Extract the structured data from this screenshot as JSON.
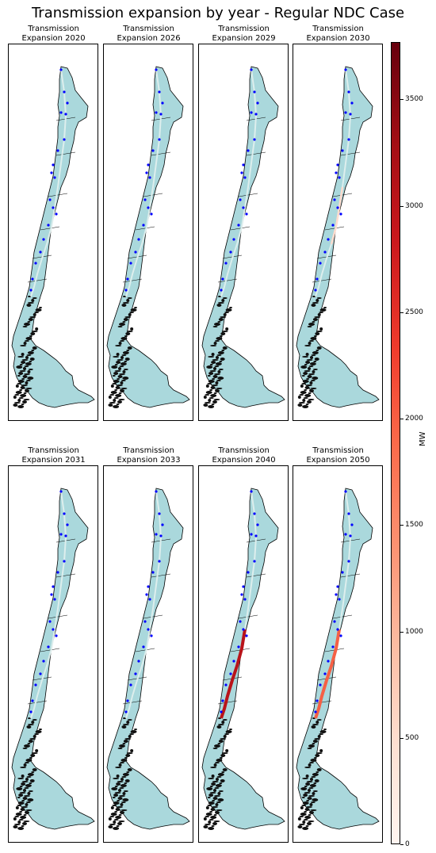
{
  "title": "Transmission expansion by year - Regular NDC Case",
  "chart_data": {
    "type": "map",
    "title": "Transmission expansion by year - Regular NDC Case",
    "panels": [
      {
        "title_line1": "Transmission",
        "title_line2": "Expansion 2020",
        "year": 2020,
        "max_expansion_mw": 0
      },
      {
        "title_line1": "Transmission",
        "title_line2": "Expansion 2026",
        "year": 2026,
        "max_expansion_mw": 0
      },
      {
        "title_line1": "Transmission",
        "title_line2": "Expansion 2029",
        "year": 2029,
        "max_expansion_mw": 0
      },
      {
        "title_line1": "Transmission",
        "title_line2": "Expansion 2030",
        "year": 2030,
        "max_expansion_mw": 400
      },
      {
        "title_line1": "Transmission",
        "title_line2": "Expansion 2031",
        "year": 2031,
        "max_expansion_mw": 0
      },
      {
        "title_line1": "Transmission",
        "title_line2": "Expansion 2033",
        "year": 2033,
        "max_expansion_mw": 0
      },
      {
        "title_line1": "Transmission",
        "title_line2": "Expansion 2040",
        "year": 2040,
        "max_expansion_mw": 3000
      },
      {
        "title_line1": "Transmission",
        "title_line2": "Expansion 2050",
        "year": 2050,
        "max_expansion_mw": 2000
      }
    ],
    "colorbar": {
      "label": "MW",
      "min": 0,
      "max": 3770,
      "ticks": [
        0,
        500,
        1000,
        1500,
        2000,
        2500,
        3000,
        3500
      ],
      "tick_labels": [
        "0",
        "500",
        "1000",
        "1500",
        "2000",
        "2500",
        "3000",
        "3500"
      ],
      "colormap": "Reds"
    },
    "colors": {
      "land": "#aad8dc",
      "line_zero": "#ddeeed",
      "node": "#0000ff",
      "border": "#000000"
    }
  }
}
